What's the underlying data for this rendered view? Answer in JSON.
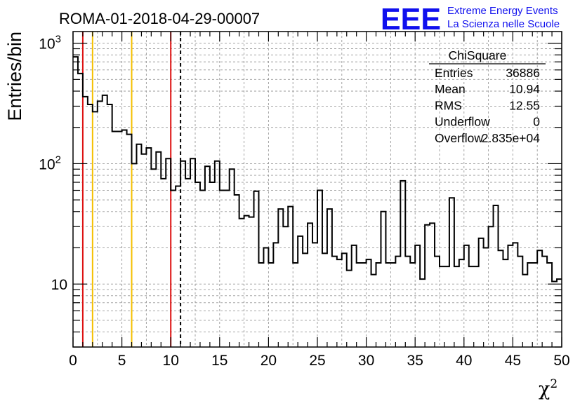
{
  "title": "ROMA-01-2018-04-29-00007",
  "logo": {
    "mark": "EEE",
    "line1": "Extreme Energy Events",
    "line2": "La Scienza nelle Scuole",
    "color": "#1010ee"
  },
  "stats": {
    "name": "ChiSquare",
    "rows": [
      {
        "label": "Entries",
        "value": "36886"
      },
      {
        "label": "Mean",
        "value": "10.94"
      },
      {
        "label": "RMS",
        "value": "12.55"
      },
      {
        "label": "Underflow",
        "value": "0"
      },
      {
        "label": "Overflow",
        "value": "2.835e+04"
      }
    ]
  },
  "chart_data": {
    "type": "histogram",
    "xlabel": "χ",
    "xlabel_sup": "2",
    "ylabel": "Entries/bin",
    "xlim": [
      0,
      50
    ],
    "ylim": [
      3,
      1250
    ],
    "yscale": "log",
    "bin_width": 0.5,
    "grid": true,
    "x_ticks": [
      0,
      5,
      10,
      15,
      20,
      25,
      30,
      35,
      40,
      45,
      50
    ],
    "y_ticks": [
      {
        "value": 10,
        "label": "10"
      },
      {
        "value": 100,
        "label": "10",
        "sup": "2"
      },
      {
        "value": 1000,
        "label": "10",
        "sup": "3"
      }
    ],
    "values": [
      770,
      560,
      360,
      310,
      270,
      330,
      370,
      310,
      185,
      185,
      190,
      175,
      100,
      145,
      120,
      135,
      90,
      125,
      75,
      110,
      60,
      65,
      105,
      75,
      110,
      70,
      60,
      95,
      70,
      105,
      60,
      60,
      90,
      55,
      35,
      37,
      36,
      59,
      15,
      20,
      15,
      22,
      42,
      30,
      44,
      15,
      25,
      18,
      32,
      22,
      60,
      18,
      42,
      17,
      16,
      18,
      13,
      21,
      15,
      15,
      16,
      12,
      15,
      40,
      15,
      15,
      17,
      72,
      17,
      15,
      21,
      11,
      31,
      32,
      17,
      14,
      14,
      52,
      14,
      16,
      21,
      14,
      14,
      24,
      20,
      30,
      45,
      19,
      16,
      21,
      22,
      17,
      12,
      15,
      15,
      19,
      17,
      15,
      10.5,
      11
    ],
    "vlines": [
      {
        "x": 1,
        "color": "#dd1111",
        "style": "solid"
      },
      {
        "x": 2,
        "color": "#f5c000",
        "style": "solid"
      },
      {
        "x": 6,
        "color": "#f5c000",
        "style": "solid"
      },
      {
        "x": 10,
        "color": "#dd1111",
        "style": "solid"
      },
      {
        "x": 11,
        "color": "#000000",
        "style": "dashed"
      }
    ]
  }
}
